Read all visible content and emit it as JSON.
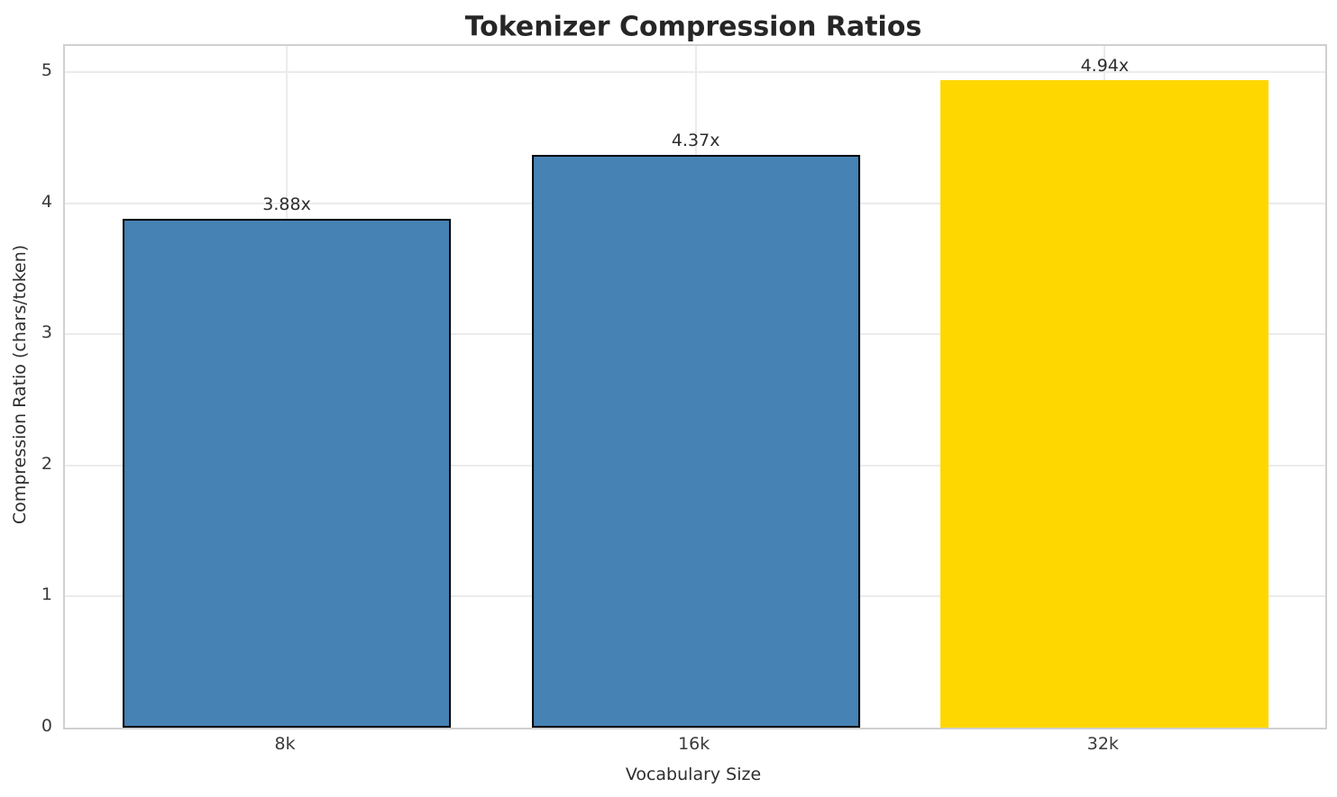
{
  "chart_data": {
    "type": "bar",
    "title": "Tokenizer Compression Ratios",
    "xlabel": "Vocabulary Size",
    "ylabel": "Compression Ratio (chars/token)",
    "categories": [
      "8k",
      "16k",
      "32k"
    ],
    "values": [
      3.88,
      4.37,
      4.94
    ],
    "value_labels": [
      "3.88x",
      "4.37x",
      "4.94x"
    ],
    "bar_colors": [
      "#4682B4",
      "#4682B4",
      "#FFD700"
    ],
    "bar_edge_colors": [
      "#000000",
      "#000000",
      "transparent"
    ],
    "yticks": [
      0,
      1,
      2,
      3,
      4,
      5
    ],
    "ytick_labels": [
      "0",
      "1",
      "2",
      "3",
      "4",
      "5"
    ],
    "ylim": [
      0,
      5.2
    ],
    "grid": true,
    "legend": false
  },
  "colors": {
    "grid": "#ebebeb",
    "spine": "#d0d0d0",
    "title_text": "#262626",
    "tick_text": "#3a3a3a",
    "background": "#ffffff"
  }
}
